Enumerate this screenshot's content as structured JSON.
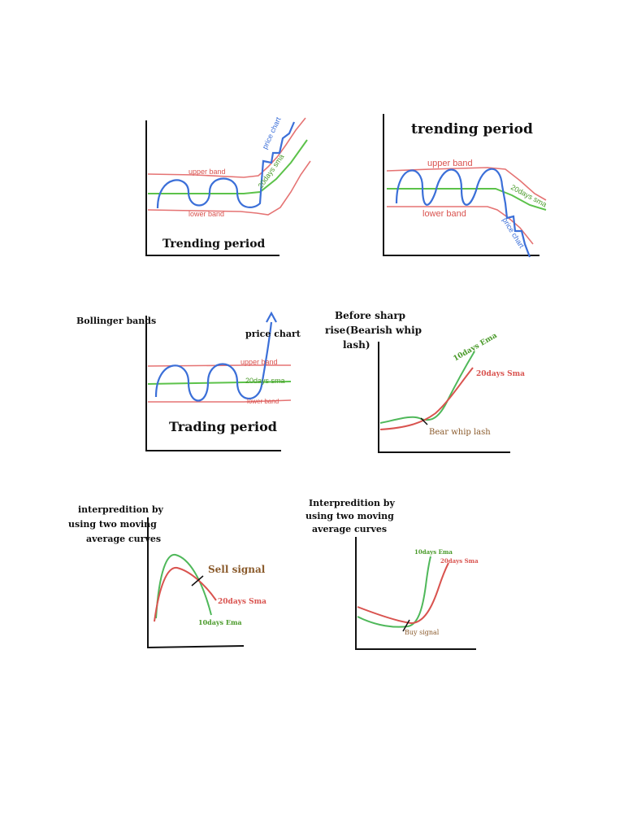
{
  "colors": {
    "axis": "#111111",
    "price": "#3b6fd8",
    "band": "#e57373",
    "sma": "#5cc24a",
    "ema": "#4fb85a",
    "sma_red": "#d9534f",
    "label_brown": "#8a5a2b",
    "label_green": "#4a9a2a"
  },
  "panels": {
    "p1": {
      "price_label": "price chart",
      "upper_label": "upper band",
      "sma_label": "20days sma",
      "lower_label": "lower band",
      "caption": "Trending period"
    },
    "p2": {
      "title": "trending period",
      "upper_label": "upper band",
      "sma_label": "20days sma",
      "lower_label": "lower band",
      "price_label": "price chart"
    },
    "p3": {
      "side_title": "Bollinger bands",
      "price_label": "price chart",
      "upper_label": "upper band",
      "sma_label": "20days sma",
      "lower_label": "lower band",
      "caption": "Trading period"
    },
    "p4": {
      "title_l1": "Before sharp",
      "title_l2": "rise(Bearish whip",
      "title_l3": "lash)",
      "ema_label": "10days Ema",
      "sma_label": "20days Sma",
      "note": "Bear whip lash"
    },
    "p5": {
      "title_l1": "interpredition by",
      "title_l2": "using two moving",
      "title_l3": "average curves",
      "signal": "Sell signal",
      "sma_label": "20days Sma",
      "ema_label": "10days Ema"
    },
    "p6": {
      "title_l1": "Interpredition by",
      "title_l2": "using two moving",
      "title_l3": "average curves",
      "ema_label": "10days Ema",
      "sma_label": "20days Sma",
      "signal": "Buy signal"
    }
  }
}
